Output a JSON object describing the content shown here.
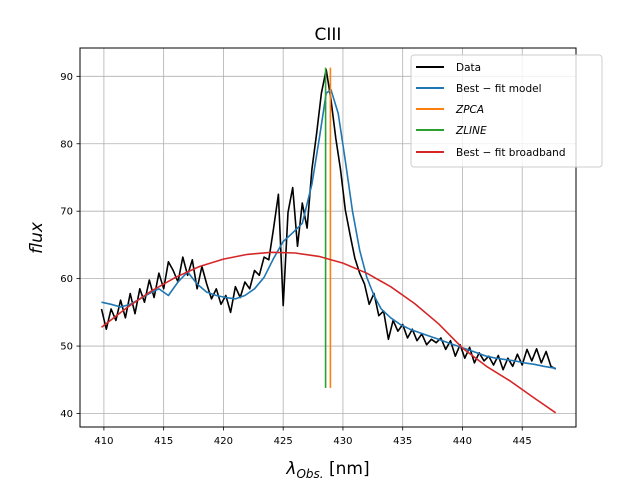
{
  "chart_data": {
    "type": "line",
    "title": "CIII",
    "xlabel": "λ_Obs. [nm]",
    "xlabel_main": "λ",
    "xlabel_sub": "Obs.",
    "xlabel_unit": " [nm]",
    "ylabel": "flux",
    "xlim": [
      408,
      449.5
    ],
    "ylim": [
      38,
      94.2
    ],
    "xticks": [
      410,
      415,
      420,
      425,
      430,
      435,
      440,
      445
    ],
    "yticks": [
      40,
      50,
      60,
      70,
      80,
      90
    ],
    "xtick_labels": [
      "410",
      "415",
      "420",
      "425",
      "430",
      "435",
      "440",
      "445"
    ],
    "ytick_labels": [
      "40",
      "50",
      "60",
      "70",
      "80",
      "90"
    ],
    "grid": true,
    "legend_position": "top-right",
    "colors": {
      "data": "#000000",
      "model": "#1f77b4",
      "zpca": "#ff7f0e",
      "zline": "#2ca02c",
      "broadband": "#d62728"
    },
    "series": [
      {
        "name": "Data",
        "label": "Data",
        "color": "#000000",
        "x": [
          409.8,
          410.2,
          410.6,
          411.0,
          411.4,
          411.8,
          412.2,
          412.6,
          413.0,
          413.4,
          413.8,
          414.2,
          414.6,
          415.0,
          415.4,
          415.8,
          416.2,
          416.6,
          417.0,
          417.4,
          417.8,
          418.2,
          418.6,
          419.0,
          419.4,
          419.8,
          420.2,
          420.6,
          421.0,
          421.4,
          421.8,
          422.2,
          422.6,
          423.0,
          423.4,
          423.8,
          424.2,
          424.6,
          425.0,
          425.4,
          425.8,
          426.2,
          426.6,
          427.0,
          427.4,
          427.8,
          428.2,
          428.6,
          429.0,
          429.4,
          429.8,
          430.2,
          430.6,
          431.0,
          431.4,
          431.8,
          432.2,
          432.6,
          433.0,
          433.4,
          433.8,
          434.2,
          434.6,
          435.0,
          435.4,
          435.8,
          436.2,
          436.6,
          437.0,
          437.4,
          437.8,
          438.2,
          438.6,
          439.0,
          439.4,
          439.8,
          440.2,
          440.6,
          441.0,
          441.4,
          441.8,
          442.2,
          442.6,
          443.0,
          443.4,
          443.8,
          444.2,
          444.6,
          445.0,
          445.4,
          445.8,
          446.2,
          446.6,
          447.0,
          447.4,
          447.8
        ],
        "y": [
          55.5,
          52.5,
          55.5,
          53.8,
          56.8,
          54.2,
          57.8,
          54.8,
          58.5,
          56.5,
          59.8,
          57.2,
          60.8,
          58.5,
          62.5,
          61.2,
          59.5,
          63.2,
          60.5,
          62.8,
          58.5,
          61.8,
          59.2,
          57.0,
          58.5,
          56.2,
          57.5,
          55.0,
          58.8,
          57.2,
          59.5,
          58.5,
          61.2,
          60.5,
          63.2,
          62.8,
          67.5,
          72.5,
          56.0,
          69.8,
          73.5,
          64.8,
          71.2,
          67.5,
          76.2,
          81.5,
          87.5,
          91.0,
          86.5,
          80.8,
          76.2,
          70.2,
          66.5,
          63.0,
          60.8,
          59.2,
          56.2,
          57.8,
          54.5,
          55.2,
          51.0,
          53.8,
          52.2,
          53.2,
          51.2,
          52.5,
          50.8,
          51.8,
          50.2,
          51.0,
          50.5,
          51.2,
          49.5,
          50.8,
          48.5,
          50.2,
          48.2,
          49.8,
          47.5,
          49.0,
          47.8,
          48.5,
          47.2,
          48.6,
          46.5,
          48.2,
          47.0,
          48.8,
          47.2,
          49.5,
          47.8,
          49.6,
          47.5,
          49.2,
          47.0,
          46.6
        ]
      },
      {
        "name": "Best-fit model",
        "label": "Best − fit model",
        "color": "#1f77b4",
        "x": [
          409.8,
          410.6,
          411.4,
          412.2,
          413.0,
          413.8,
          414.6,
          415.4,
          416.2,
          417.0,
          417.8,
          418.6,
          419.4,
          420.2,
          421.0,
          421.8,
          422.6,
          423.4,
          424.2,
          425.0,
          425.8,
          426.6,
          427.4,
          428.0,
          428.6,
          429.0,
          429.6,
          430.2,
          430.8,
          431.4,
          432.0,
          432.6,
          433.2,
          434.0,
          434.8,
          435.6,
          436.4,
          437.2,
          438.0,
          438.8,
          439.6,
          440.4,
          441.2,
          442.0,
          442.8,
          443.6,
          444.4,
          445.2,
          446.0,
          446.8,
          447.8
        ],
        "y": [
          56.5,
          56.2,
          55.8,
          56.2,
          57.0,
          57.8,
          58.5,
          57.5,
          59.5,
          61.0,
          59.2,
          58.0,
          57.5,
          57.2,
          57.0,
          57.5,
          58.5,
          60.2,
          63.0,
          65.5,
          66.8,
          68.2,
          74.0,
          80.5,
          87.5,
          88.0,
          84.5,
          77.5,
          70.0,
          64.2,
          60.2,
          57.5,
          55.5,
          54.2,
          53.2,
          52.5,
          52.0,
          51.5,
          51.0,
          50.5,
          50.0,
          49.5,
          49.0,
          48.5,
          48.2,
          48.0,
          47.8,
          47.5,
          47.3,
          47.0,
          46.7
        ]
      },
      {
        "name": "ZPCA",
        "label": "ZPCA",
        "color": "#ff7f0e",
        "x": [
          428.95,
          428.95
        ],
        "y": [
          43.8,
          91.3
        ]
      },
      {
        "name": "ZLINE",
        "label": "ZLINE",
        "color": "#2ca02c",
        "x": [
          428.55,
          428.55
        ],
        "y": [
          43.8,
          91.3
        ]
      },
      {
        "name": "Best-fit broadband",
        "label": "Best − fit broadband",
        "color": "#d62728",
        "x": [
          409.8,
          412.0,
          414.0,
          416.0,
          418.0,
          420.0,
          422.0,
          424.0,
          426.0,
          428.0,
          430.0,
          432.0,
          434.0,
          436.0,
          438.0,
          440.0,
          442.0,
          444.0,
          446.0,
          447.8
        ],
        "y": [
          52.8,
          55.8,
          58.2,
          60.2,
          61.8,
          62.9,
          63.6,
          63.9,
          63.8,
          63.3,
          62.3,
          60.8,
          58.8,
          56.3,
          53.3,
          49.7,
          47.0,
          44.8,
          42.3,
          40.1
        ]
      }
    ]
  }
}
